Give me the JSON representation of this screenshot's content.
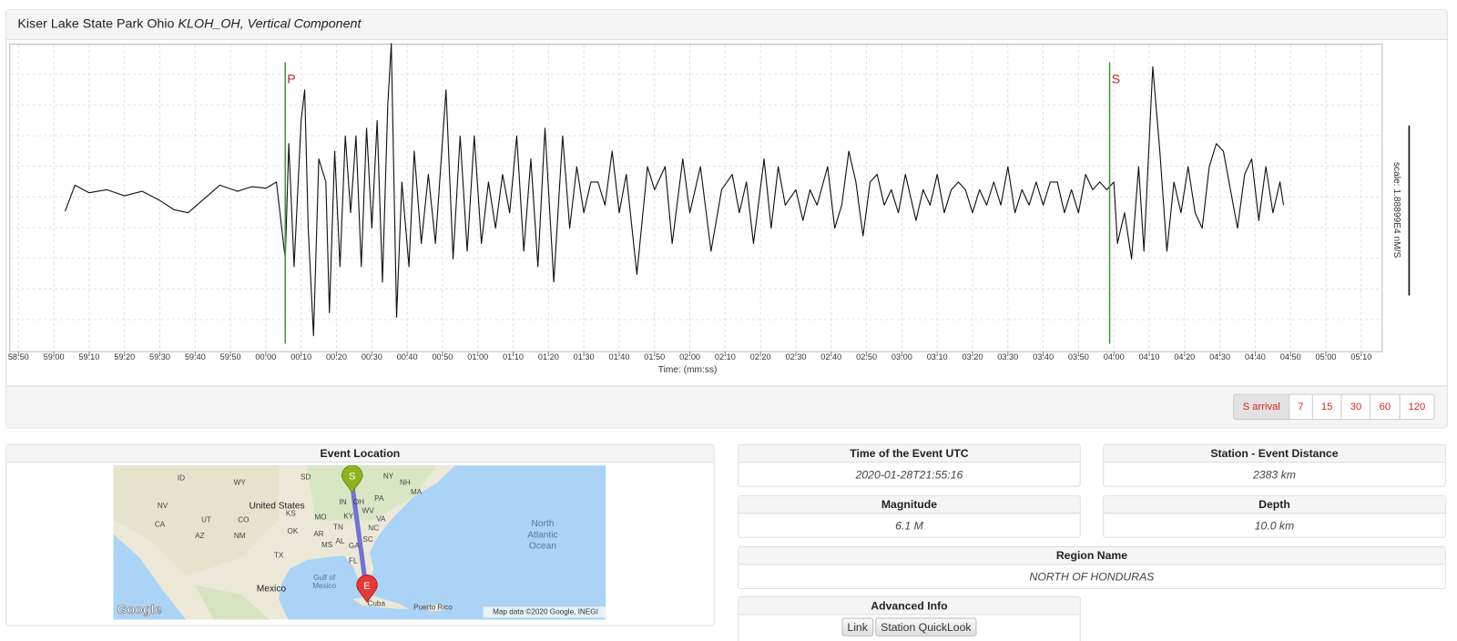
{
  "chart_data": {
    "type": "line",
    "title": "Kiser Lake State Park Ohio",
    "subtitle": "KLOH_OH, Vertical Component",
    "x_label": "Time: (mm:ss)",
    "y_label": "scale: 1.88899E4 nM/S",
    "x": [
      -56.8,
      -54,
      -50,
      -45,
      -40,
      -35,
      -30,
      -26,
      -22,
      -18,
      -13,
      -8,
      -4,
      0,
      3,
      5.5,
      6.5,
      8,
      10,
      11,
      12,
      13.5,
      15,
      17,
      18,
      19.5,
      21,
      22.5,
      24,
      25.5,
      27,
      28.5,
      30,
      31.5,
      33,
      34.5,
      35.5,
      37,
      38.5,
      40.5,
      42,
      44,
      46,
      48,
      51,
      53,
      55,
      57,
      59,
      61,
      63,
      65,
      67,
      69,
      71,
      73,
      75,
      77,
      79,
      81.5,
      84,
      86,
      88,
      90,
      92,
      94,
      96,
      98,
      100,
      102,
      105,
      108,
      110,
      113,
      115,
      118,
      120,
      123,
      126,
      129,
      132,
      134,
      136,
      138,
      141,
      143,
      145,
      147,
      150,
      152,
      154,
      156,
      159,
      161,
      163,
      165,
      167,
      169,
      171,
      173,
      175,
      177,
      179,
      181,
      184,
      186,
      188,
      190,
      192,
      194,
      196,
      198,
      200,
      202,
      204,
      206,
      208,
      210,
      212,
      214,
      216,
      218,
      220,
      222,
      224,
      226,
      228,
      230,
      232,
      234,
      236,
      238,
      240,
      241,
      243,
      245,
      247,
      248.5,
      251,
      253,
      255,
      257,
      259,
      261,
      263,
      265,
      267,
      269,
      271,
      273,
      275,
      277,
      279,
      281,
      283,
      285,
      287,
      288
    ],
    "values": [
      -0.09,
      0.08,
      0.03,
      0.05,
      0.01,
      0.04,
      -0.02,
      -0.08,
      -0.1,
      -0.02,
      0.08,
      0.04,
      0.07,
      0.06,
      0.1,
      -0.4,
      0.35,
      -0.45,
      0.5,
      0.7,
      -0.2,
      -0.9,
      0.25,
      0.1,
      -0.75,
      0.3,
      -0.45,
      0.4,
      -0.1,
      0.4,
      -0.45,
      0.45,
      -0.2,
      0.5,
      -0.55,
      0.6,
      1.0,
      -0.78,
      0.1,
      -0.45,
      0.3,
      -0.3,
      0.15,
      -0.3,
      0.7,
      -0.4,
      0.4,
      -0.35,
      0.4,
      -0.3,
      0.1,
      -0.2,
      0.15,
      -0.1,
      0.4,
      -0.35,
      0.25,
      -0.45,
      0.45,
      -0.55,
      0.4,
      -0.2,
      0.2,
      -0.1,
      0.1,
      0.1,
      -0.05,
      0.3,
      -0.1,
      0.15,
      -0.5,
      0.2,
      0.05,
      0.2,
      -0.3,
      0.25,
      -0.1,
      0.2,
      -0.35,
      0.05,
      0.15,
      -0.1,
      0.1,
      -0.3,
      0.25,
      -0.2,
      0.2,
      -0.05,
      0.05,
      -0.15,
      0.05,
      -0.05,
      0.2,
      -0.2,
      -0.05,
      0.3,
      0.1,
      -0.25,
      0.1,
      0.15,
      -0.05,
      0.05,
      -0.1,
      0.15,
      -0.15,
      0.05,
      -0.05,
      0.15,
      -0.1,
      0.05,
      0.1,
      0.05,
      -0.1,
      0.05,
      -0.05,
      0.1,
      -0.05,
      0.2,
      -0.1,
      0.05,
      -0.05,
      0.1,
      -0.05,
      0.1,
      0.1,
      -0.1,
      0.05,
      -0.1,
      0.15,
      0.05,
      0.1,
      0.05,
      0.1,
      -0.3,
      -0.1,
      -0.4,
      0.2,
      -0.35,
      0.85,
      0.3,
      -0.35,
      0.1,
      -0.1,
      0.2,
      -0.1,
      -0.2,
      0.2,
      0.35,
      0.3,
      0.05,
      -0.2,
      0.15,
      0.25,
      -0.15,
      0.2,
      -0.1,
      0.1,
      -0.05
    ],
    "color": "#111111",
    "xlim": [
      -72.6,
      315.8
    ],
    "ylim": [
      -1,
      1
    ],
    "grid": true,
    "xticks": [
      {
        "value": -70,
        "label": "58:50"
      },
      {
        "value": -60,
        "label": "59:00"
      },
      {
        "value": -50,
        "label": "59:10"
      },
      {
        "value": -40,
        "label": "59:20"
      },
      {
        "value": -30,
        "label": "59:30"
      },
      {
        "value": -20,
        "label": "59:40"
      },
      {
        "value": -10,
        "label": "59:50"
      },
      {
        "value": 0,
        "label": "00:00"
      },
      {
        "value": 10,
        "label": "00:10"
      },
      {
        "value": 20,
        "label": "00:20"
      },
      {
        "value": 30,
        "label": "00:30"
      },
      {
        "value": 40,
        "label": "00:40"
      },
      {
        "value": 50,
        "label": "00:50"
      },
      {
        "value": 60,
        "label": "01:00"
      },
      {
        "value": 70,
        "label": "01:10"
      },
      {
        "value": 80,
        "label": "01:20"
      },
      {
        "value": 90,
        "label": "01:30"
      },
      {
        "value": 100,
        "label": "01:40"
      },
      {
        "value": 110,
        "label": "01:50"
      },
      {
        "value": 120,
        "label": "02:00"
      },
      {
        "value": 130,
        "label": "02:10"
      },
      {
        "value": 140,
        "label": "02:20"
      },
      {
        "value": 150,
        "label": "02:30"
      },
      {
        "value": 160,
        "label": "02:40"
      },
      {
        "value": 170,
        "label": "02:50"
      },
      {
        "value": 180,
        "label": "03:00"
      },
      {
        "value": 190,
        "label": "03:10"
      },
      {
        "value": 200,
        "label": "03:20"
      },
      {
        "value": 210,
        "label": "03:30"
      },
      {
        "value": 220,
        "label": "03:40"
      },
      {
        "value": 230,
        "label": "03:50"
      },
      {
        "value": 240,
        "label": "04:00"
      },
      {
        "value": 250,
        "label": "04:10"
      },
      {
        "value": 260,
        "label": "04:20"
      },
      {
        "value": 270,
        "label": "04:30"
      },
      {
        "value": 280,
        "label": "04:40"
      },
      {
        "value": 290,
        "label": "04:50"
      },
      {
        "value": 300,
        "label": "05:00"
      },
      {
        "value": 310,
        "label": "05:10"
      }
    ],
    "markers": [
      {
        "label": "P",
        "x": 5.5,
        "color": "#3a9a3a"
      },
      {
        "label": "S",
        "x": 238.8,
        "color": "#3a9a3a"
      }
    ]
  },
  "controls": {
    "buttons": [
      "S arrival",
      "7",
      "15",
      "30",
      "60",
      "120"
    ]
  },
  "event_location": {
    "title": "Event Location",
    "map": {
      "labels": [
        "ID",
        "WY",
        "NV",
        "UT",
        "CO",
        "CA",
        "AZ",
        "NM",
        "SD",
        "KS",
        "OK",
        "TX",
        "MO",
        "AR",
        "MS",
        "AL",
        "GA",
        "TN",
        "KY",
        "IN",
        "OH",
        "PA",
        "NY",
        "NC",
        "SC",
        "VA",
        "WV",
        "FL",
        "NH",
        "MA",
        "United States",
        "Mexico",
        "Cuba",
        "Puerto Rico"
      ],
      "gulf": [
        "Gulf of",
        "Mexico"
      ],
      "ocean": [
        "North",
        "Atlantic",
        "Ocean"
      ],
      "station": "S",
      "event": "E",
      "logo": "Google",
      "attribution": "Map data ©2020 Google, INEGI"
    }
  },
  "info": {
    "time": {
      "label": "Time of the Event UTC",
      "value": "2020-01-28T21:55:16"
    },
    "distance": {
      "label": "Station - Event Distance",
      "value": "2383 km"
    },
    "magnitude": {
      "label": "Magnitude",
      "value": "6.1 M"
    },
    "depth": {
      "label": "Depth",
      "value": "10.0 km"
    },
    "region": {
      "label": "Region Name",
      "value": "NORTH OF HONDURAS"
    }
  },
  "advanced": {
    "label": "Advanced Info",
    "links": [
      "Link",
      "Station QuickLook"
    ]
  }
}
